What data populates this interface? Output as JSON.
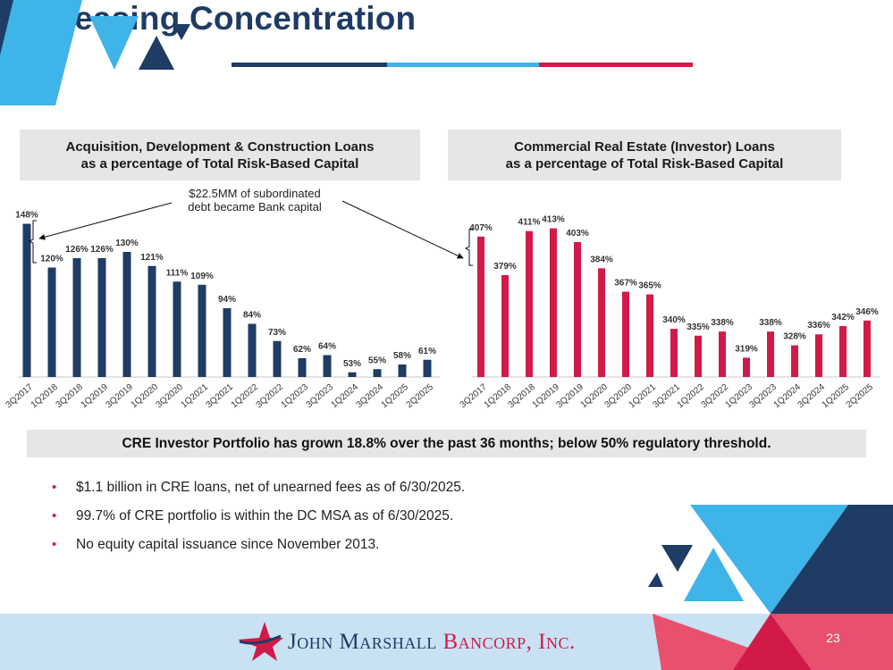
{
  "title": "Decreasing Concentration",
  "colors": {
    "navy": "#1e3c64",
    "red": "#d21a48",
    "sky": "#3fb4e8",
    "light_blue": "#c8e2f3",
    "gray_band": "#e6e6e6"
  },
  "left_header": {
    "line1": "Acquisition, Development & Construction Loans",
    "line2": "as a percentage of Total Risk-Based Capital"
  },
  "right_header": {
    "line1": "Commercial Real Estate (Investor) Loans",
    "line2": "as a percentage of Total Risk-Based Capital"
  },
  "callout": {
    "line1": "$22.5MM of subordinated",
    "line2": "debt became Bank capital"
  },
  "chart_data": [
    {
      "type": "bar",
      "title": "Acquisition, Development & Construction Loans as a percentage of Total Risk-Based Capital",
      "categories": [
        "3Q2017",
        "1Q2018",
        "3Q2018",
        "1Q2019",
        "3Q2019",
        "1Q2020",
        "3Q2020",
        "1Q2021",
        "3Q2021",
        "1Q2022",
        "3Q2022",
        "1Q2023",
        "3Q2023",
        "1Q2024",
        "3Q2024",
        "1Q2025",
        "2Q2025"
      ],
      "values": [
        148,
        120,
        126,
        126,
        130,
        121,
        111,
        109,
        94,
        84,
        73,
        62,
        64,
        53,
        55,
        58,
        61
      ],
      "labels": [
        "148%",
        "120%",
        "126%",
        "126%",
        "130%",
        "121%",
        "111%",
        "109%",
        "94%",
        "84%",
        "73%",
        "62%",
        "64%",
        "53%",
        "55%",
        "58%",
        "61%"
      ],
      "ylim": [
        50,
        150
      ],
      "color": "#1e3c64"
    },
    {
      "type": "bar",
      "title": "Commercial Real Estate (Investor) Loans as a percentage of Total Risk-Based Capital",
      "categories": [
        "3Q2017",
        "1Q2018",
        "3Q2018",
        "1Q2019",
        "3Q2019",
        "1Q2020",
        "3Q2020",
        "1Q2021",
        "3Q2021",
        "1Q2022",
        "3Q2022",
        "1Q2023",
        "3Q2023",
        "1Q2024",
        "3Q2024",
        "1Q2025",
        "2Q2025"
      ],
      "values": [
        407,
        379,
        411,
        413,
        403,
        384,
        367,
        365,
        340,
        335,
        338,
        319,
        338,
        328,
        336,
        342,
        346
      ],
      "labels": [
        "407%",
        "379%",
        "411%",
        "413%",
        "403%",
        "384%",
        "367%",
        "365%",
        "340%",
        "335%",
        "338%",
        "319%",
        "338%",
        "328%",
        "336%",
        "342%",
        "346%"
      ],
      "ylim": [
        305,
        416
      ],
      "color": "#d21a48"
    }
  ],
  "summary": "CRE Investor Portfolio has grown 18.8% over the past 36 months; below 50% regulatory threshold.",
  "bullets": [
    "$1.1 billion in CRE loans, net of unearned fees as of 6/30/2025.",
    "99.7% of CRE portfolio is within the DC MSA as of 6/30/2025.",
    "No equity capital issuance since November 2013."
  ],
  "bullet_glyph": "•",
  "footer": {
    "logo_part1": "John Marshall",
    "logo_part2": "Bancorp, Inc.",
    "logo_icon": "star-icon",
    "page_number": "23"
  }
}
